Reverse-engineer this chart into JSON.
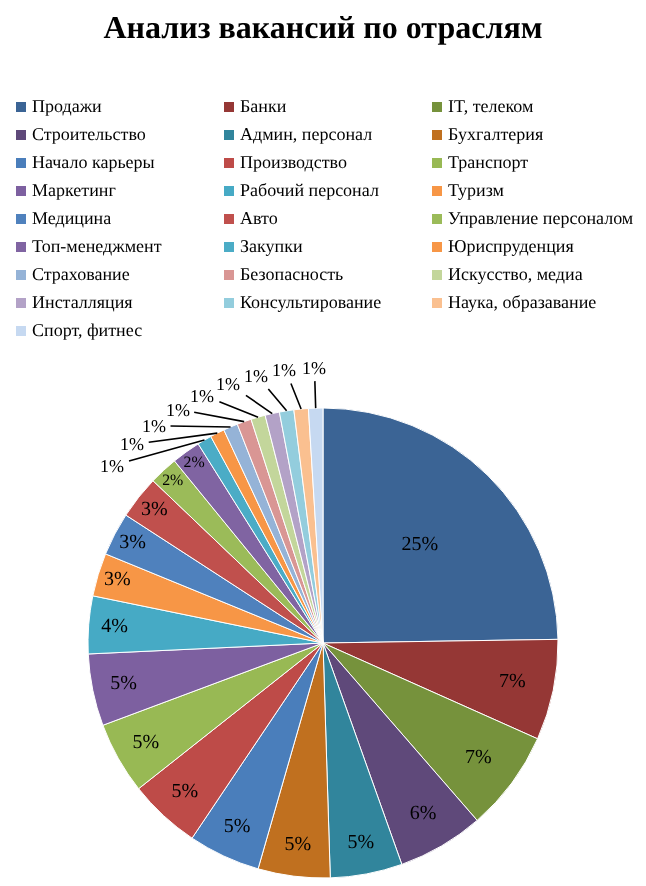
{
  "chart_data": {
    "type": "pie",
    "title": "Анализ вакансий по отраслям",
    "categories": [
      "Продажи",
      "Банки",
      "IT, телеком",
      "Строительство",
      "Админ, персонал",
      "Бухгалтерия",
      "Начало карьеры",
      "Производство",
      "Транспорт",
      "Маркетинг",
      "Рабочий персонал",
      "Туризм",
      "Медицина",
      "Авто",
      "Управление персоналом",
      "Топ-менеджмент",
      "Закупки",
      "Юриспруденция",
      "Страхование",
      "Безопасность",
      "Искусство, медиа",
      "Инсталляция",
      "Консультирование",
      "Наука, образавание",
      "Спорт, фитнес"
    ],
    "values": [
      25,
      7,
      7,
      6,
      5,
      5,
      5,
      5,
      5,
      5,
      4,
      3,
      3,
      3,
      2,
      2,
      1,
      1,
      1,
      1,
      1,
      1,
      1,
      1,
      1
    ],
    "colors": [
      "#3b6495",
      "#953735",
      "#76923c",
      "#5f497a",
      "#31859c",
      "#c0701f",
      "#4a7ebb",
      "#be4b48",
      "#98b954",
      "#7d60a0",
      "#46aac5",
      "#f79646",
      "#4f81bd",
      "#c0504d",
      "#9bbb59",
      "#8064a2",
      "#4bacc6",
      "#f79646",
      "#95b3d7",
      "#d99694",
      "#c3d69b",
      "#b3a2c7",
      "#93cddd",
      "#fac090",
      "#c6d9f1"
    ],
    "value_labels": [
      "25%",
      "7%",
      "7%",
      "6%",
      "5%",
      "5%",
      "5%",
      "5%",
      "5%",
      "5%",
      "4%",
      "3%",
      "3%",
      "3%",
      "2%",
      "2%",
      "1%",
      "1%",
      "1%",
      "1%",
      "1%",
      "1%",
      "1%",
      "1%",
      "1%"
    ],
    "legend": "top"
  }
}
